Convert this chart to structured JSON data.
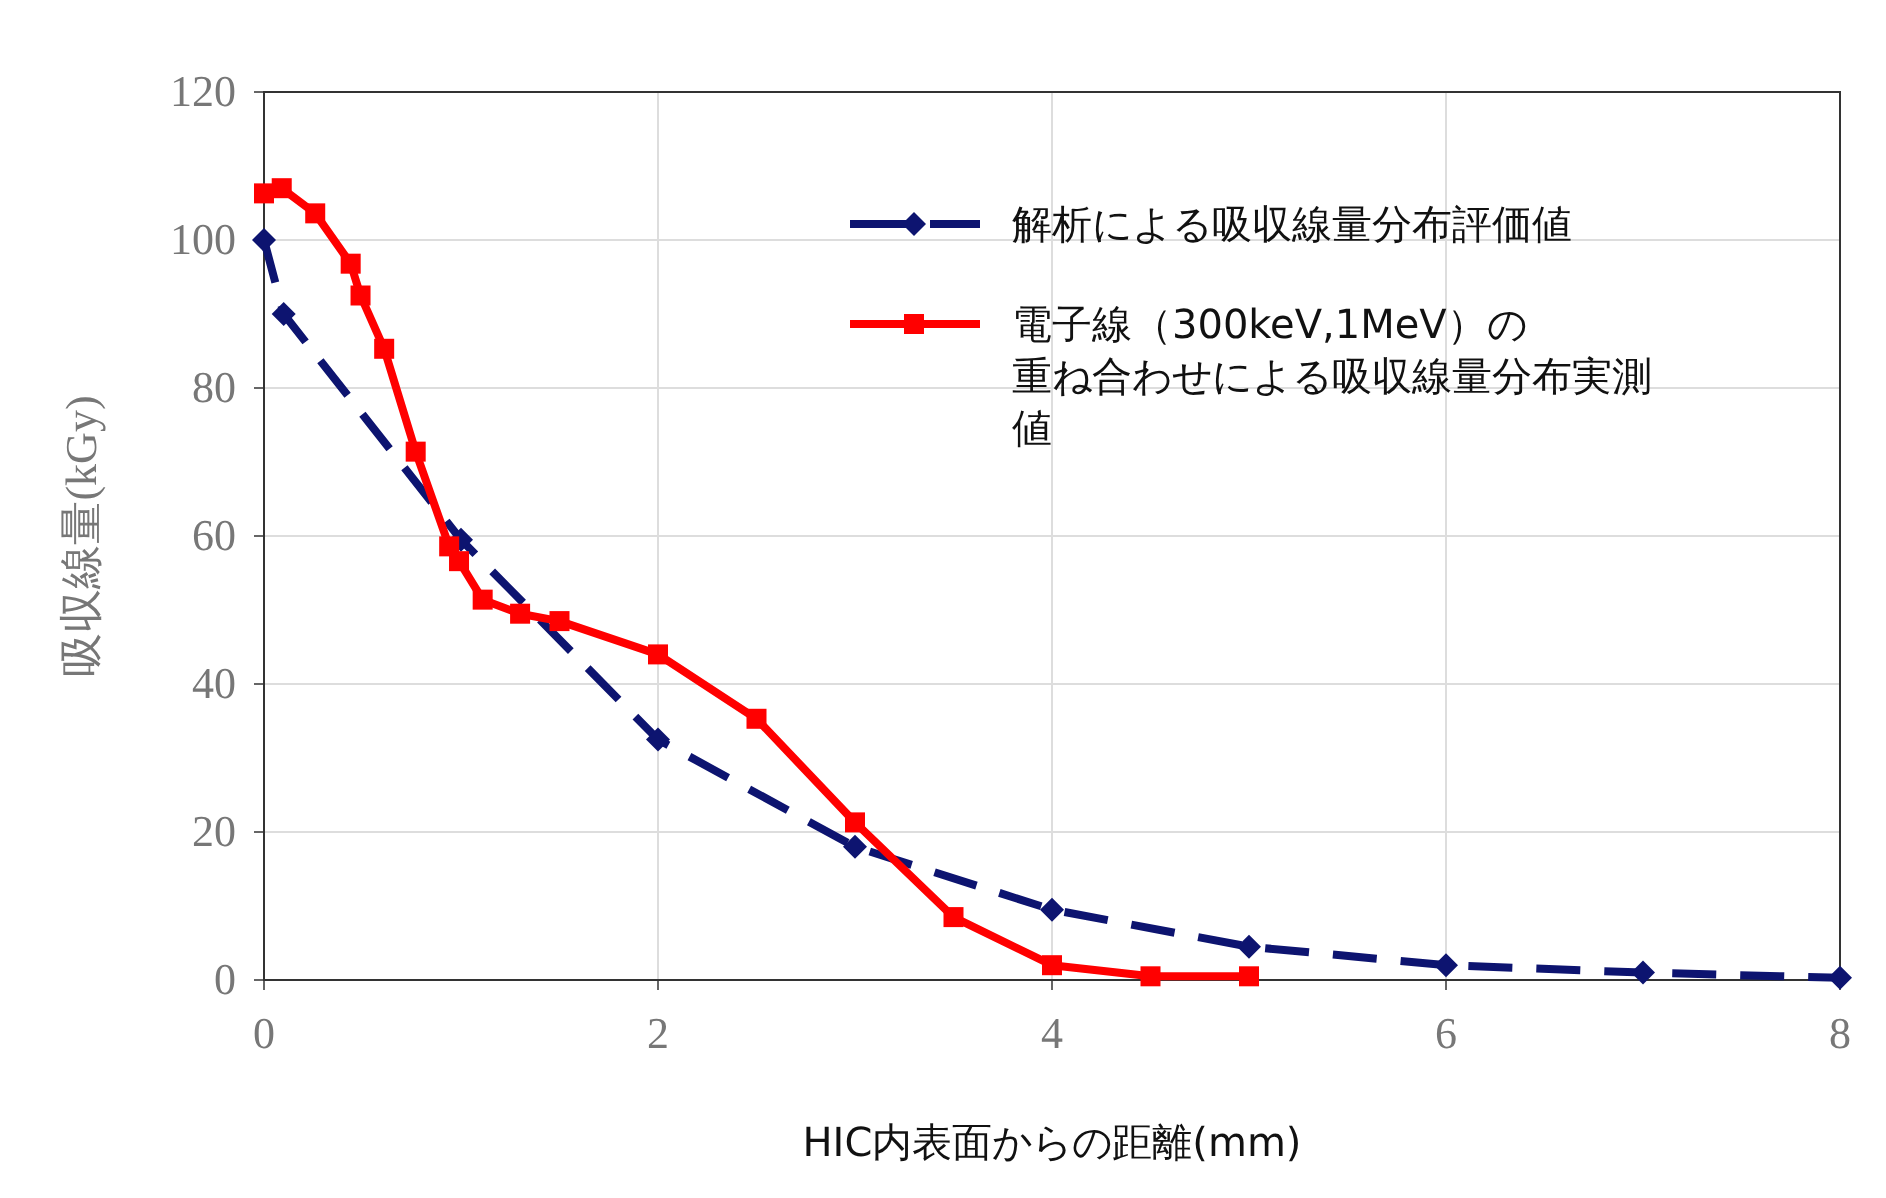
{
  "chart_data": {
    "type": "line",
    "xlabel": "HIC内表面からの距離(mm)",
    "ylabel": "吸収線量(kGy)",
    "xlim": [
      0,
      8
    ],
    "xticks": [
      0,
      2,
      4,
      6,
      8
    ],
    "ylim": [
      0,
      120
    ],
    "yticks": [
      0,
      20,
      40,
      60,
      80,
      100,
      120
    ],
    "grid": true,
    "legend": "top right",
    "series": [
      {
        "name": "解析による吸収線量分布評価値",
        "color": "#0d1470",
        "marker": "diamond",
        "line_style": "dashed",
        "x": [
          0,
          0.1,
          1,
          2,
          3,
          4,
          5,
          6,
          7,
          8
        ],
        "values": [
          100,
          90,
          59.5,
          32.5,
          18,
          9.5,
          4.5,
          2,
          1,
          0.3
        ]
      },
      {
        "name": "電子線（300keV,1MeV）の重ね合わせによる吸収線量分布実測値",
        "color": "#ff0000",
        "marker": "square",
        "line_style": "solid",
        "x": [
          0,
          0.09,
          0.26,
          0.44,
          0.49,
          0.61,
          0.77,
          0.94,
          0.99,
          1.11,
          1.3,
          1.5,
          2,
          2.5,
          3,
          3.5,
          4,
          4.5,
          5
        ],
        "values": [
          106.3,
          107,
          103.6,
          96.8,
          92.5,
          85.3,
          71.4,
          58.6,
          56.6,
          51.4,
          49.5,
          48.5,
          44,
          35.3,
          21.3,
          8.5,
          2,
          0.5,
          0.5
        ]
      }
    ]
  }
}
